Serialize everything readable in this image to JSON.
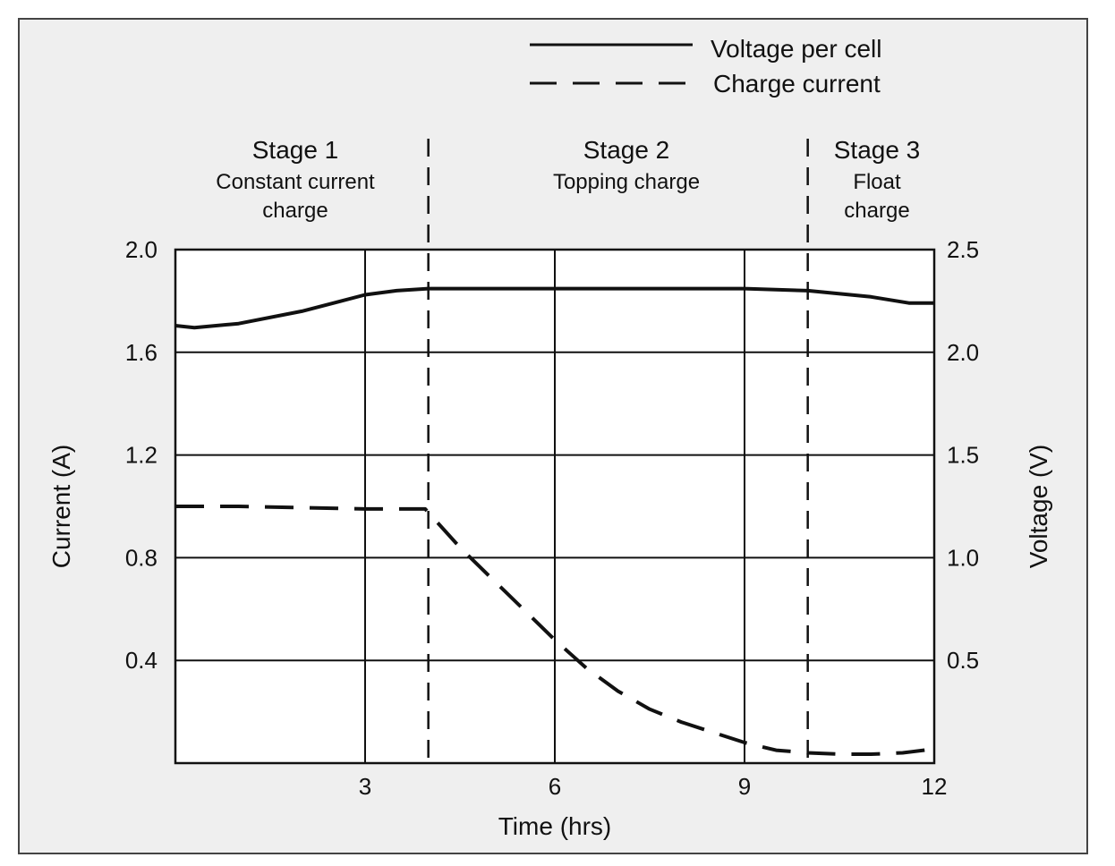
{
  "chart_data": {
    "type": "line",
    "xlabel": "Time (hrs)",
    "ylabel_left": "Current (A)",
    "ylabel_right": "Voltage (V)",
    "xlim": [
      0,
      12
    ],
    "ylim_left": [
      0,
      2.0
    ],
    "ylim_right": [
      0,
      2.5
    ],
    "x_ticks": [
      3,
      6,
      9,
      12
    ],
    "y_left_ticks": [
      0.4,
      0.8,
      1.2,
      1.6,
      2.0
    ],
    "y_right_ticks": [
      0.5,
      1.0,
      1.5,
      2.0,
      2.5
    ],
    "x_tick_labels": [
      "3",
      "6",
      "9",
      "12"
    ],
    "y_left_tick_labels": [
      "0.4",
      "0.8",
      "1.2",
      "1.6",
      "2.0"
    ],
    "y_right_tick_labels": [
      "0.5",
      "1.0",
      "1.5",
      "2.0",
      "2.5"
    ],
    "grid": true,
    "legend_position": "top-right",
    "stage_boundaries": [
      4,
      10
    ],
    "stages": [
      {
        "title": "Stage 1",
        "desc_lines": [
          "Constant current",
          "charge"
        ]
      },
      {
        "title": "Stage 2",
        "desc_lines": [
          "Topping charge"
        ]
      },
      {
        "title": "Stage 3",
        "desc_lines": [
          "Float",
          "charge"
        ]
      }
    ],
    "series": [
      {
        "name": "Voltage per cell",
        "axis": "right",
        "style": "solid",
        "x": [
          0,
          0.3,
          1,
          2,
          3,
          3.5,
          4,
          5,
          6,
          7,
          8,
          9,
          10,
          11,
          11.6,
          12
        ],
        "y": [
          2.13,
          2.12,
          2.14,
          2.2,
          2.28,
          2.3,
          2.31,
          2.31,
          2.31,
          2.31,
          2.31,
          2.31,
          2.3,
          2.27,
          2.24,
          2.24
        ]
      },
      {
        "name": "Charge current",
        "axis": "left",
        "style": "dashed",
        "x": [
          0,
          1,
          2,
          3,
          3.5,
          3.95,
          4.5,
          5,
          5.5,
          6,
          6.5,
          7,
          7.5,
          8,
          8.5,
          9,
          9.5,
          10,
          10.5,
          11,
          11.5,
          12
        ],
        "y": [
          1.0,
          1.0,
          0.995,
          0.99,
          0.99,
          0.99,
          0.84,
          0.72,
          0.6,
          0.48,
          0.37,
          0.28,
          0.21,
          0.16,
          0.12,
          0.08,
          0.05,
          0.04,
          0.035,
          0.035,
          0.04,
          0.055
        ]
      }
    ]
  }
}
